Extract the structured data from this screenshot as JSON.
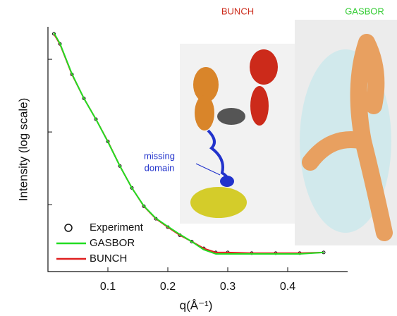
{
  "chart_data": {
    "type": "line",
    "y_label": "Intensity (log scale)",
    "x_label": "q(Å⁻¹)",
    "log_y": true,
    "xlim": [
      0,
      0.5
    ],
    "xticks": [
      0.1,
      0.2,
      0.3,
      0.4
    ],
    "ylim": [
      0.12,
      280
    ],
    "yticks": [
      1,
      10,
      100
    ],
    "legend": "lower left",
    "x": [
      0.01,
      0.02,
      0.04,
      0.06,
      0.08,
      0.1,
      0.12,
      0.14,
      0.16,
      0.18,
      0.2,
      0.22,
      0.24,
      0.26,
      0.28,
      0.3,
      0.34,
      0.38,
      0.42,
      0.46
    ],
    "series": [
      {
        "name": "Experiment",
        "color": "#111111",
        "marker": "circle",
        "values": [
          224,
          163,
          62,
          29,
          15,
          7.4,
          3.4,
          1.7,
          0.95,
          0.64,
          0.49,
          0.38,
          0.31,
          0.25,
          0.22,
          0.22,
          0.215,
          0.215,
          0.215,
          0.22
        ]
      },
      {
        "name": "GASBOR",
        "color": "#22dd22",
        "values": [
          230,
          165,
          63,
          29,
          15,
          7.3,
          3.4,
          1.7,
          0.96,
          0.65,
          0.5,
          0.39,
          0.31,
          0.24,
          0.21,
          0.21,
          0.21,
          0.21,
          0.21,
          0.22
        ]
      },
      {
        "name": "BUNCH",
        "color": "#e02020",
        "values": [
          222,
          162,
          62,
          29,
          15,
          7.4,
          3.4,
          1.7,
          0.95,
          0.64,
          0.49,
          0.38,
          0.31,
          0.25,
          0.22,
          0.22,
          0.215,
          0.215,
          0.215,
          0.22
        ]
      }
    ],
    "annotations": {
      "bunch_model": "BUNCH",
      "gasbor_model": "GASBOR",
      "missing_domain": [
        "missing",
        "domain"
      ]
    }
  }
}
